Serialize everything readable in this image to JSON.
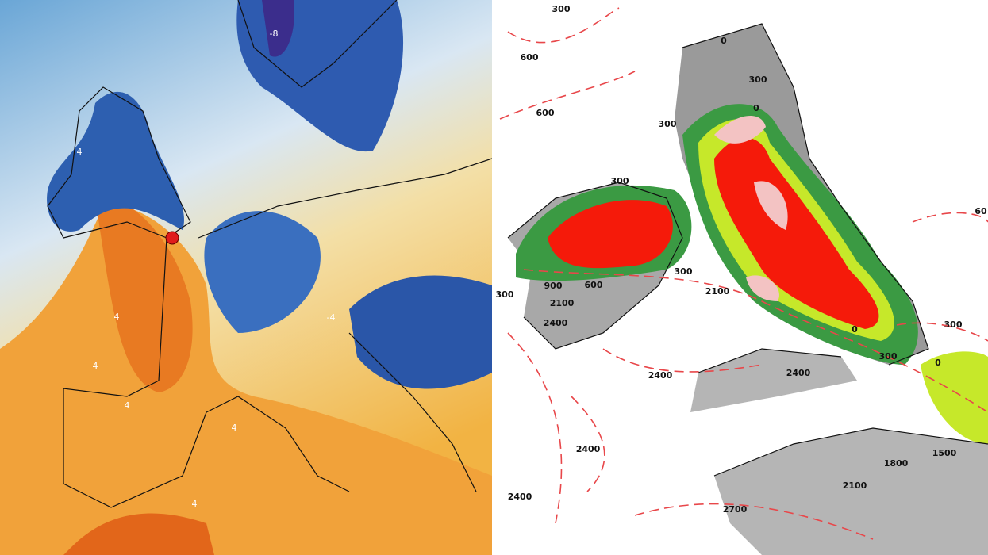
{
  "left_map": {
    "labels": [
      "-8",
      "4",
      "4",
      "4",
      "4",
      "-4",
      "4",
      "4"
    ]
  },
  "right_map": {
    "labels": [
      "300",
      "600",
      "600",
      "0",
      "300",
      "0",
      "300",
      "300",
      "900",
      "600",
      "300",
      "2100",
      "300",
      "2100",
      "2400",
      "0",
      "300",
      "300",
      "0",
      "2400",
      "2400",
      "1500",
      "1800",
      "2100",
      "2400",
      "2400",
      "2700",
      "60"
    ]
  }
}
